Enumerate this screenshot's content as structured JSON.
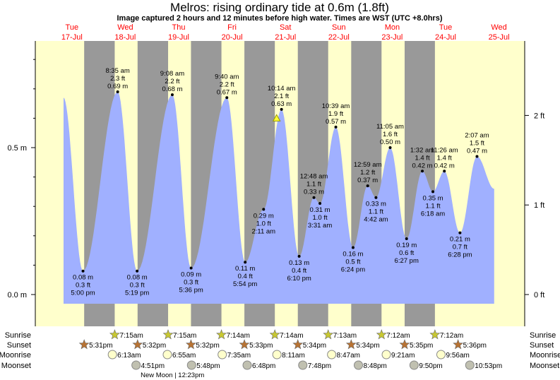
{
  "chart_data": {
    "type": "area",
    "title": "Melros: rising  ordinary tide at 0.6m (1.8ft)",
    "subtitle": "Image captured 2 hours and 12 minutes before high water. Times are WST (UTC +8.0hrs)",
    "days": [
      {
        "dow": "Tue",
        "date": "17-Jul"
      },
      {
        "dow": "Wed",
        "date": "18-Jul"
      },
      {
        "dow": "Thu",
        "date": "19-Jul"
      },
      {
        "dow": "Fri",
        "date": "20-Jul"
      },
      {
        "dow": "Sat",
        "date": "21-Jul"
      },
      {
        "dow": "Sun",
        "date": "22-Jul"
      },
      {
        "dow": "Mon",
        "date": "23-Jul"
      },
      {
        "dow": "Tue",
        "date": "24-Jul"
      },
      {
        "dow": "Wed",
        "date": "25-Jul"
      }
    ],
    "y_left": {
      "unit": "m",
      "ticks": [
        {
          "v": 0.0,
          "label": "0.0 m"
        },
        {
          "v": 0.5,
          "label": "0.5 m"
        }
      ],
      "ylim": [
        -0.04,
        0.86
      ]
    },
    "y_right": {
      "unit": "ft",
      "ticks": [
        {
          "v": 0,
          "label": "0 ft"
        },
        {
          "v": 1,
          "label": "1 ft"
        },
        {
          "v": 2,
          "label": "2 ft"
        }
      ]
    },
    "series_start": {
      "day": 0,
      "time": "8:15 am",
      "m": 0.67
    },
    "series_end": {
      "day": 8,
      "time": "9:50 am",
      "m": 0.36
    },
    "extremes": [
      {
        "day": 0,
        "type": "low",
        "time": "5:00 pm",
        "m": 0.08,
        "m_label": "0.08 m",
        "ft": "0.3 ft"
      },
      {
        "day": 1,
        "type": "high",
        "time": "8:35 am",
        "m": 0.69,
        "m_label": "0.69 m",
        "ft": "2.3 ft"
      },
      {
        "day": 1,
        "type": "low",
        "time": "5:19 pm",
        "m": 0.08,
        "m_label": "0.08 m",
        "ft": "0.3 ft"
      },
      {
        "day": 2,
        "type": "high",
        "time": "9:08 am",
        "m": 0.68,
        "m_label": "0.68 m",
        "ft": "2.2 ft"
      },
      {
        "day": 2,
        "type": "low",
        "time": "5:36 pm",
        "m": 0.09,
        "m_label": "0.09 m",
        "ft": "0.3 ft"
      },
      {
        "day": 3,
        "type": "high",
        "time": "9:40 am",
        "m": 0.67,
        "m_label": "0.67 m",
        "ft": "2.2 ft"
      },
      {
        "day": 3,
        "type": "low",
        "time": "5:54 pm",
        "m": 0.11,
        "m_label": "0.11 m",
        "ft": "0.4 ft"
      },
      {
        "day": 4,
        "type": "low",
        "time": "2:11 am",
        "m": 0.29,
        "m_label": "0.29 m",
        "ft": "1.0 ft"
      },
      {
        "day": 4,
        "type": "high",
        "time": "10:14 am",
        "m": 0.63,
        "m_label": "0.63 m",
        "ft": "2.1 ft"
      },
      {
        "day": 4,
        "type": "low",
        "time": "6:10 pm",
        "m": 0.13,
        "m_label": "0.13 m",
        "ft": "0.4 ft"
      },
      {
        "day": 5,
        "type": "high",
        "time": "12:48 am",
        "m": 0.33,
        "m_label": "0.33 m",
        "ft": "1.1 ft"
      },
      {
        "day": 5,
        "type": "low",
        "time": "3:31 am",
        "m": 0.31,
        "m_label": "0.31 m",
        "ft": "1.0 ft"
      },
      {
        "day": 5,
        "type": "high",
        "time": "10:39 am",
        "m": 0.57,
        "m_label": "0.57 m",
        "ft": "1.9 ft"
      },
      {
        "day": 5,
        "type": "low",
        "time": "6:24 pm",
        "m": 0.16,
        "m_label": "0.16 m",
        "ft": "0.5 ft"
      },
      {
        "day": 6,
        "type": "high",
        "time": "12:59 am",
        "m": 0.37,
        "m_label": "0.37 m",
        "ft": "1.2 ft"
      },
      {
        "day": 6,
        "type": "low",
        "time": "4:42 am",
        "m": 0.33,
        "m_label": "0.33 m",
        "ft": "1.1 ft"
      },
      {
        "day": 6,
        "type": "high",
        "time": "11:05 am",
        "m": 0.5,
        "m_label": "0.50 m",
        "ft": "1.6 ft"
      },
      {
        "day": 6,
        "type": "low",
        "time": "6:27 pm",
        "m": 0.19,
        "m_label": "0.19 m",
        "ft": "0.6 ft"
      },
      {
        "day": 7,
        "type": "high",
        "time": "1:32 am",
        "m": 0.42,
        "m_label": "0.42 m",
        "ft": "1.4 ft"
      },
      {
        "day": 7,
        "type": "low",
        "time": "6:18 am",
        "m": 0.35,
        "m_label": "0.35 m",
        "ft": "1.1 ft"
      },
      {
        "day": 7,
        "type": "high",
        "time": "11:26 am",
        "m": 0.42,
        "m_label": "0.42 m",
        "ft": "1.4 ft"
      },
      {
        "day": 7,
        "type": "low",
        "time": "6:28 pm",
        "m": 0.21,
        "m_label": "0.21 m",
        "ft": "0.7 ft"
      },
      {
        "day": 8,
        "type": "high",
        "time": "2:07 am",
        "m": 0.47,
        "m_label": "0.47 m",
        "ft": "1.5 ft"
      }
    ],
    "current": {
      "day": 4,
      "time": "8:02 am",
      "m": 0.6
    },
    "rows": {
      "sunrise_label": "Sunrise",
      "sunset_label": "Sunset",
      "moonrise_label": "Moonrise",
      "moonset_label": "Moonset",
      "sunrise": [
        {
          "day": 1,
          "time": "7:15am"
        },
        {
          "day": 2,
          "time": "7:15am"
        },
        {
          "day": 3,
          "time": "7:14am"
        },
        {
          "day": 4,
          "time": "7:14am"
        },
        {
          "day": 5,
          "time": "7:13am"
        },
        {
          "day": 6,
          "time": "7:12am"
        },
        {
          "day": 7,
          "time": "7:12am"
        }
      ],
      "sunset": [
        {
          "day": 0,
          "time": "5:31pm"
        },
        {
          "day": 1,
          "time": "5:32pm"
        },
        {
          "day": 2,
          "time": "5:32pm"
        },
        {
          "day": 3,
          "time": "5:33pm"
        },
        {
          "day": 4,
          "time": "5:34pm"
        },
        {
          "day": 5,
          "time": "5:34pm"
        },
        {
          "day": 6,
          "time": "5:35pm"
        },
        {
          "day": 7,
          "time": "5:36pm"
        }
      ],
      "moonrise": [
        {
          "day": 1,
          "time": "6:13am"
        },
        {
          "day": 2,
          "time": "6:55am"
        },
        {
          "day": 3,
          "time": "7:35am"
        },
        {
          "day": 4,
          "time": "8:11am"
        },
        {
          "day": 5,
          "time": "8:47am"
        },
        {
          "day": 6,
          "time": "9:21am"
        },
        {
          "day": 7,
          "time": "9:56am"
        }
      ],
      "moonset": [
        {
          "day": 1,
          "time": "4:51pm"
        },
        {
          "day": 2,
          "time": "5:48pm"
        },
        {
          "day": 3,
          "time": "6:48pm"
        },
        {
          "day": 4,
          "time": "7:48pm"
        },
        {
          "day": 5,
          "time": "8:48pm"
        },
        {
          "day": 6,
          "time": "9:50pm"
        },
        {
          "day": 7,
          "time": "10:53pm"
        }
      ],
      "moon_phase": {
        "day": 2,
        "time": "12:23pm",
        "label": "New Moon | 12:23pm"
      }
    },
    "colors": {
      "day": "#ffffcc",
      "night": "#999999",
      "water": "#a0b0ff",
      "date_text": "#ff0000",
      "sun_rise": "#c8c832",
      "sun_set": "#b87333",
      "moon_rise": "#ffffcc",
      "moon_set": "#c0c0b0"
    }
  }
}
